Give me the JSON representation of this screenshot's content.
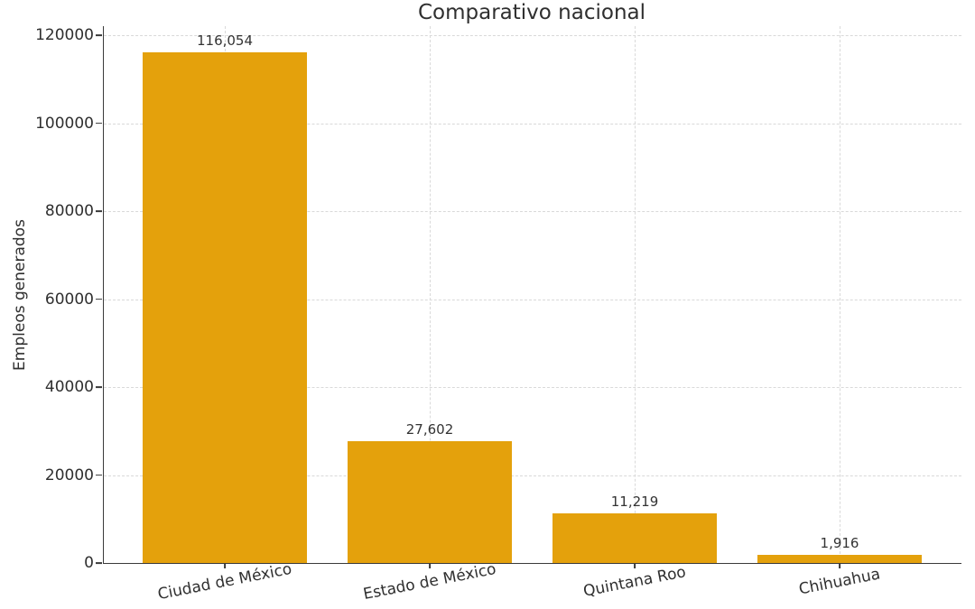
{
  "chart_data": {
    "type": "bar",
    "title": "Comparativo nacional",
    "xlabel": "",
    "ylabel": "Empleos generados",
    "categories": [
      "Ciudad de México",
      "Estado de México",
      "Quintana Roo",
      "Chihuahua"
    ],
    "values": [
      116054,
      27602,
      11219,
      1916
    ],
    "value_labels": [
      "116,054",
      "27,602",
      "11,219",
      "1,916"
    ],
    "y_ticks": [
      0,
      20000,
      40000,
      60000,
      80000,
      100000,
      120000
    ],
    "y_tick_labels": [
      "0",
      "20000",
      "40000",
      "60000",
      "80000",
      "100000",
      "120000"
    ],
    "ylim": [
      0,
      122000
    ],
    "grid": "horizontal and vertical, dashed",
    "legend": "none",
    "bar_color": "#E4A10C",
    "grid_color": "#d9d9d9",
    "axis_color": "#3a3a3a",
    "text_color": "#2f2f2f",
    "background_color": "#ffffff"
  }
}
